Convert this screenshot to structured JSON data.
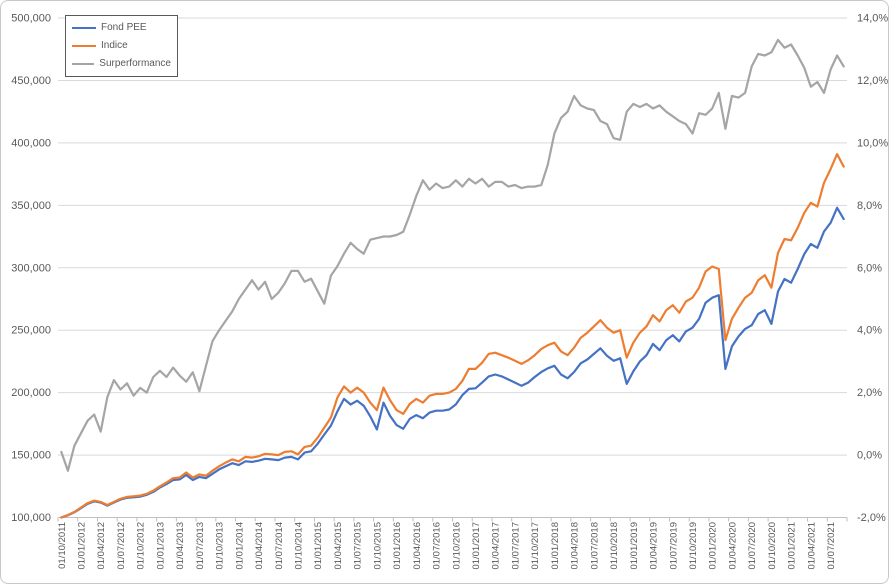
{
  "chart_data": {
    "type": "line",
    "title": "",
    "n_points": 120,
    "points_per_label": 3,
    "x_tick_labels": [
      "01/10/2011",
      "01/01/2012",
      "01/04/2012",
      "01/07/2012",
      "01/10/2012",
      "01/01/2013",
      "01/04/2013",
      "01/07/2013",
      "01/10/2013",
      "01/01/2014",
      "01/04/2014",
      "01/07/2014",
      "01/10/2014",
      "01/01/2015",
      "01/04/2015",
      "01/07/2015",
      "01/10/2015",
      "01/01/2016",
      "01/04/2016",
      "01/07/2016",
      "01/10/2016",
      "01/01/2017",
      "01/04/2017",
      "01/07/2017",
      "01/10/2017",
      "01/01/2018",
      "01/04/2018",
      "01/07/2018",
      "01/10/2018",
      "01/01/2019",
      "01/04/2019",
      "01/07/2019",
      "01/10/2019",
      "01/01/2020",
      "01/04/2020",
      "01/07/2020",
      "01/10/2020",
      "01/01/2021",
      "01/04/2021",
      "01/07/2021"
    ],
    "left_axis": {
      "min": 100000,
      "max": 500000,
      "step": 50000,
      "format": "thousands-comma"
    },
    "right_axis": {
      "min": -2,
      "max": 14,
      "step": 2,
      "format": "percent-french-decimal"
    },
    "grid": true,
    "legend_position": "top-left",
    "series": [
      {
        "name": "Fond PEE",
        "axis": "left",
        "color": "#4472C4",
        "values": [
          100000,
          101800,
          104200,
          107500,
          111000,
          113000,
          112000,
          109500,
          112000,
          114300,
          115800,
          116200,
          116700,
          118200,
          120500,
          124000,
          126800,
          130000,
          130500,
          134000,
          130000,
          132500,
          131500,
          135000,
          138500,
          141000,
          143500,
          142000,
          145000,
          144500,
          145500,
          147000,
          146500,
          146000,
          148000,
          148500,
          146500,
          152000,
          153000,
          159000,
          166500,
          173500,
          185000,
          195000,
          190500,
          193500,
          189500,
          181000,
          170500,
          192000,
          181500,
          174000,
          171000,
          179000,
          182000,
          179500,
          184000,
          185500,
          185500,
          186500,
          190500,
          198000,
          203000,
          203500,
          208000,
          213000,
          214500,
          213000,
          210500,
          208000,
          205500,
          208000,
          212500,
          216500,
          219500,
          221500,
          214500,
          211500,
          216500,
          223500,
          226500,
          231000,
          235500,
          229500,
          225500,
          227500,
          207000,
          217000,
          225000,
          230000,
          239000,
          234000,
          242000,
          246000,
          241000,
          249000,
          252000,
          259000,
          272000,
          276000,
          278000,
          219000,
          237000,
          245000,
          251000,
          254000,
          263000,
          266000,
          255000,
          281000,
          291000,
          288000,
          299000,
          311000,
          319000,
          316000,
          329000,
          336000,
          348000,
          339000
        ]
      },
      {
        "name": "Indice",
        "axis": "left",
        "color": "#ED7D31",
        "values": [
          100000,
          102000,
          104500,
          108000,
          111500,
          113500,
          112500,
          110000,
          112500,
          115000,
          116500,
          117000,
          117500,
          119000,
          121500,
          125000,
          128000,
          131500,
          132000,
          136000,
          132000,
          134500,
          133500,
          137500,
          141000,
          144000,
          146500,
          145000,
          148500,
          148000,
          149000,
          151000,
          150500,
          150000,
          152500,
          153000,
          150500,
          156500,
          157500,
          164000,
          172000,
          180000,
          196000,
          205000,
          200000,
          204000,
          200000,
          192000,
          186000,
          204000,
          194000,
          186000,
          183000,
          191000,
          195000,
          192000,
          197500,
          199000,
          199000,
          200000,
          203000,
          209500,
          219000,
          219000,
          224000,
          231000,
          232000,
          230000,
          228000,
          225500,
          223000,
          226000,
          230000,
          235000,
          238000,
          240000,
          233000,
          230000,
          236000,
          244000,
          248000,
          253000,
          258000,
          252000,
          248000,
          250000,
          228000,
          240000,
          248000,
          253000,
          262000,
          257000,
          266000,
          270000,
          264000,
          273000,
          276000,
          284000,
          297000,
          301000,
          299000,
          242000,
          259000,
          268000,
          276000,
          280000,
          290000,
          294000,
          284000,
          312000,
          323000,
          322000,
          332000,
          344000,
          352000,
          349000,
          368000,
          379000,
          391000,
          381000
        ]
      },
      {
        "name": "Surperformance",
        "axis": "right",
        "color": "#A5A5A5",
        "values": [
          0.1,
          -0.5,
          0.3,
          0.7,
          1.1,
          1.3,
          0.75,
          1.85,
          2.4,
          2.1,
          2.3,
          1.9,
          2.15,
          2.0,
          2.5,
          2.7,
          2.5,
          2.8,
          2.55,
          2.35,
          2.65,
          2.05,
          2.85,
          3.65,
          4.0,
          4.3,
          4.6,
          5.0,
          5.3,
          5.6,
          5.3,
          5.55,
          5.0,
          5.2,
          5.5,
          5.9,
          5.9,
          5.55,
          5.65,
          5.25,
          4.85,
          5.75,
          6.05,
          6.45,
          6.8,
          6.6,
          6.45,
          6.9,
          6.95,
          7.0,
          7.0,
          7.05,
          7.15,
          7.7,
          8.3,
          8.8,
          8.5,
          8.7,
          8.55,
          8.6,
          8.8,
          8.6,
          8.85,
          8.7,
          8.85,
          8.6,
          8.75,
          8.75,
          8.6,
          8.65,
          8.55,
          8.6,
          8.6,
          8.65,
          9.3,
          10.3,
          10.8,
          11.0,
          11.5,
          11.2,
          11.1,
          11.05,
          10.7,
          10.6,
          10.15,
          10.1,
          11.0,
          11.25,
          11.15,
          11.25,
          11.1,
          11.2,
          11.0,
          10.85,
          10.7,
          10.6,
          10.3,
          10.95,
          10.9,
          11.1,
          11.6,
          10.45,
          11.5,
          11.45,
          11.6,
          12.45,
          12.85,
          12.8,
          12.9,
          13.3,
          13.05,
          13.15,
          12.8,
          12.4,
          11.8,
          11.95,
          11.6,
          12.35,
          12.8,
          12.45
        ]
      }
    ]
  },
  "colors": {
    "gridline": "#D9D9D9",
    "axis_line": "#BFBFBF",
    "axis_text": "#595959",
    "legend_border": "#595959",
    "frame_border": "#C9C9C9",
    "background": "#FFFFFF"
  }
}
